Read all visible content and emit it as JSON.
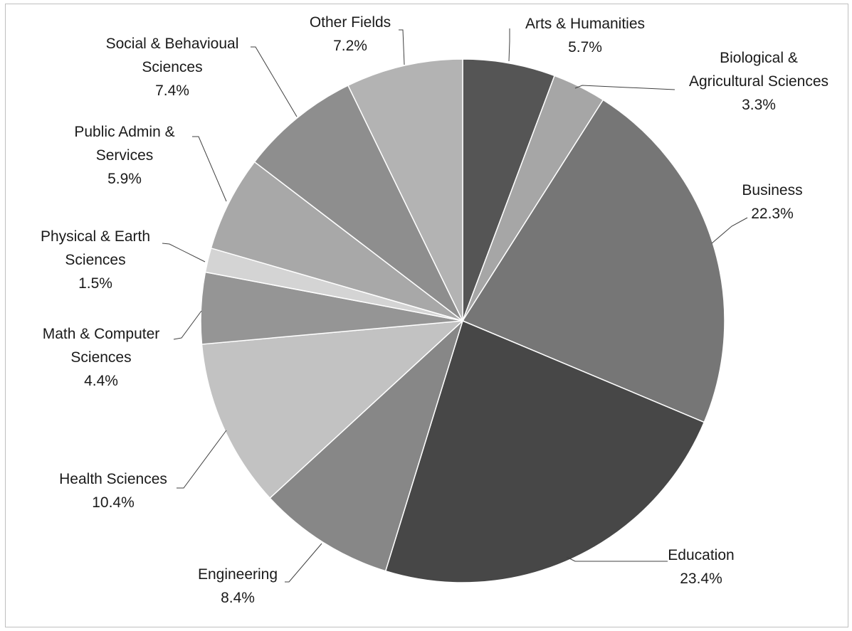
{
  "chart_data": {
    "type": "pie",
    "title": "",
    "slices": [
      {
        "name": "Arts & Humanities",
        "value": 5.7,
        "label_lines": [
          "Arts & Humanities",
          "5.7%"
        ],
        "color": "#555555"
      },
      {
        "name": "Biological & Agricultural Sciences",
        "value": 3.3,
        "label_lines": [
          "Biological &",
          "Agricultural Sciences",
          "3.3%"
        ],
        "color": "#a6a6a6"
      },
      {
        "name": "Business",
        "value": 22.3,
        "label_lines": [
          "Business",
          "22.3%"
        ],
        "color": "#767676"
      },
      {
        "name": "Education",
        "value": 23.4,
        "label_lines": [
          "Education",
          "23.4%"
        ],
        "color": "#474747"
      },
      {
        "name": "Engineering",
        "value": 8.4,
        "label_lines": [
          "Engineering",
          "8.4%"
        ],
        "color": "#878787"
      },
      {
        "name": "Health Sciences",
        "value": 10.4,
        "label_lines": [
          "Health Sciences",
          "10.4%"
        ],
        "color": "#c2c2c2"
      },
      {
        "name": "Math & Computer Sciences",
        "value": 4.4,
        "label_lines": [
          "Math & Computer",
          "Sciences",
          "4.4%"
        ],
        "color": "#959595"
      },
      {
        "name": "Physical & Earth Sciences",
        "value": 1.5,
        "label_lines": [
          "Physical & Earth",
          "Sciences",
          "1.5%"
        ],
        "color": "#d4d4d4"
      },
      {
        "name": "Public Admin & Services",
        "value": 5.9,
        "label_lines": [
          "Public Admin &",
          "Services",
          "5.9%"
        ],
        "color": "#a8a8a8"
      },
      {
        "name": "Social & Behavioual Sciences",
        "value": 7.4,
        "label_lines": [
          "Social & Behavioual",
          "Sciences",
          "7.4%"
        ],
        "color": "#8e8e8e"
      },
      {
        "name": "Other Fields",
        "value": 7.2,
        "label_lines": [
          "Other Fields",
          "7.2%"
        ],
        "color": "#b3b3b3"
      }
    ]
  }
}
